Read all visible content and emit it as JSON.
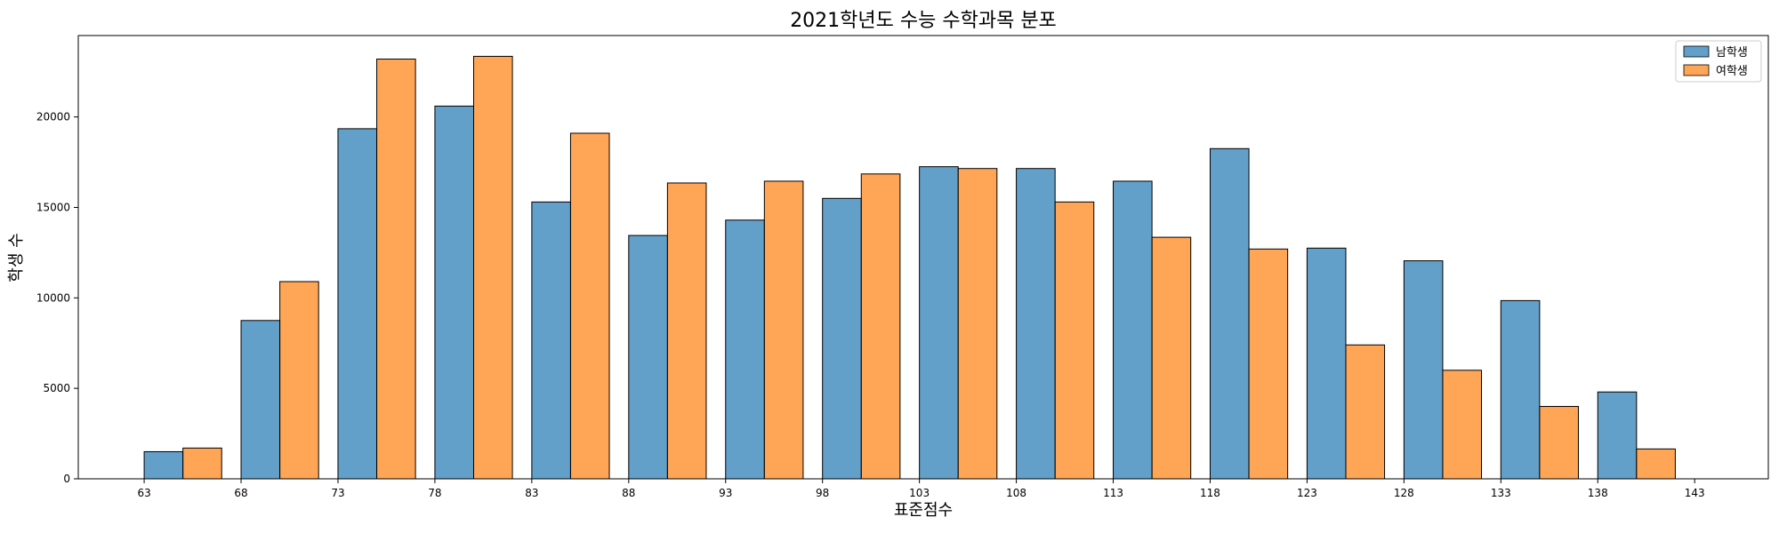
{
  "chart_data": {
    "type": "bar",
    "title": "2021학년도 수능 수학과목 분포",
    "xlabel": "표준점수",
    "ylabel": "학생 수",
    "bin_edges": [
      63,
      68,
      73,
      78,
      83,
      88,
      93,
      98,
      103,
      108,
      113,
      118,
      123,
      128,
      133,
      138,
      143
    ],
    "x_ticks": [
      "63",
      "68",
      "73",
      "78",
      "83",
      "88",
      "93",
      "98",
      "103",
      "108",
      "113",
      "118",
      "123",
      "128",
      "133",
      "138",
      "143"
    ],
    "y_ticks": [
      "0",
      "5000",
      "10000",
      "15000",
      "20000"
    ],
    "ylim": [
      0,
      24500
    ],
    "xlim": [
      59.6,
      146.8
    ],
    "grid": false,
    "legend": "top-right",
    "series": [
      {
        "name": "남학생",
        "color": "#1f77b4",
        "values": [
          1500,
          8750,
          19350,
          20600,
          15300,
          13450,
          14300,
          15500,
          17250,
          17150,
          16450,
          18250,
          12750,
          12050,
          9850,
          4800
        ]
      },
      {
        "name": "여학생",
        "color": "#ff7f0e",
        "values": [
          1700,
          10900,
          23200,
          23350,
          19100,
          16350,
          16450,
          16850,
          17150,
          15300,
          13350,
          12700,
          7400,
          6000,
          4000,
          1650
        ]
      }
    ]
  }
}
